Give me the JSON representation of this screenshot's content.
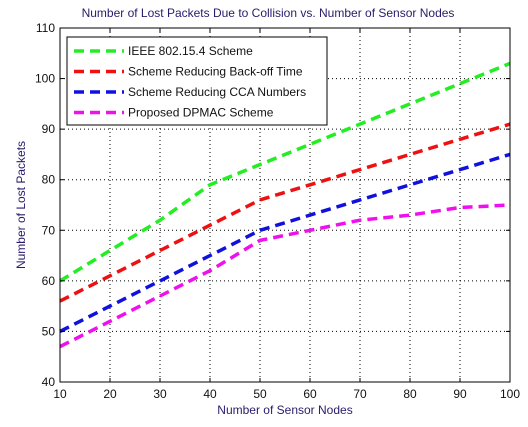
{
  "chart_data": {
    "type": "line",
    "title": "Number of Lost Packets Due to Collision vs. Number of Sensor Nodes",
    "xlabel": "Number of Sensor Nodes",
    "ylabel": "Number of Lost Packets",
    "xlim": [
      10,
      100
    ],
    "ylim": [
      40,
      110
    ],
    "xticks": [
      10,
      20,
      30,
      40,
      50,
      60,
      70,
      80,
      90,
      100
    ],
    "yticks": [
      40,
      50,
      60,
      70,
      80,
      90,
      100,
      110
    ],
    "grid": true,
    "grid_style": "dotted",
    "legend_position": "top-left",
    "x": [
      10,
      20,
      30,
      40,
      50,
      60,
      70,
      80,
      90,
      100
    ],
    "series": [
      {
        "name": "IEEE 802.15.4 Scheme",
        "color": "#22ee22",
        "values": [
          60,
          66,
          72,
          79,
          83,
          87,
          91,
          95,
          99,
          103
        ]
      },
      {
        "name": "Scheme Reducing Back-off Time",
        "color": "#ee1111",
        "values": [
          56,
          61,
          66,
          71,
          76,
          79,
          82,
          85,
          88,
          91
        ]
      },
      {
        "name": "Scheme Reducing CCA Numbers",
        "color": "#1111dd",
        "values": [
          50,
          55,
          60,
          65,
          70,
          73,
          76,
          79,
          82,
          85
        ]
      },
      {
        "name": "Proposed DPMAC Scheme",
        "color": "#ee11ee",
        "values": [
          47,
          52,
          57,
          62,
          68,
          70,
          72,
          73,
          74.5,
          75
        ]
      }
    ]
  }
}
